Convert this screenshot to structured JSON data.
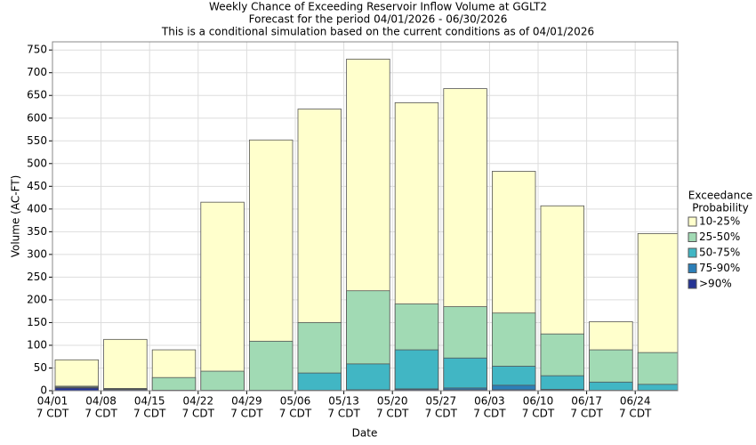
{
  "chart_data": {
    "type": "bar",
    "title": "Weekly Chance of Exceeding Reservoir Inflow Volume at GGLT2",
    "subtitle": "Forecast for the period 04/01/2026 - 06/30/2026",
    "note": "This is a conditional simulation based on the current conditions as of 04/01/2026",
    "x_label": "Date",
    "y_label": "Volume (AC-FT)",
    "x_sublabel": "7 CDT",
    "legend_title": [
      "Exceedance",
      "Probability"
    ],
    "categories": [
      "04/01",
      "04/08",
      "04/15",
      "04/22",
      "04/29",
      "05/06",
      "05/13",
      "05/20",
      "05/27",
      "06/03",
      "06/10",
      "06/17",
      "06/24"
    ],
    "series": [
      {
        "name": "10-25%",
        "color": "#ffffcc",
        "values": [
          68,
          113,
          90,
          415,
          552,
          620,
          730,
          634,
          665,
          483,
          407,
          152,
          346
        ]
      },
      {
        "name": "25-50%",
        "color": "#a1dab4",
        "values": [
          10,
          5,
          29,
          43,
          109,
          150,
          220,
          191,
          185,
          171,
          125,
          90,
          84
        ]
      },
      {
        "name": "50-75%",
        "color": "#41b6c4",
        "values": [
          8,
          4,
          1,
          1,
          1,
          39,
          59,
          90,
          72,
          54,
          33,
          19,
          14
        ]
      },
      {
        "name": "75-90%",
        "color": "#2c7fb8",
        "values": [
          7,
          3,
          1,
          0,
          0,
          1,
          2,
          4,
          6,
          12,
          3,
          1,
          1
        ]
      },
      {
        "name": ">90%",
        "color": "#253494",
        "values": [
          6,
          2,
          0,
          0,
          0,
          0,
          1,
          2,
          2,
          2,
          1,
          0,
          0
        ]
      }
    ],
    "ylim": [
      0,
      768
    ],
    "yticks": [
      0,
      50,
      100,
      150,
      200,
      250,
      300,
      350,
      400,
      450,
      500,
      550,
      600,
      650,
      700,
      750
    ],
    "grid": true
  }
}
